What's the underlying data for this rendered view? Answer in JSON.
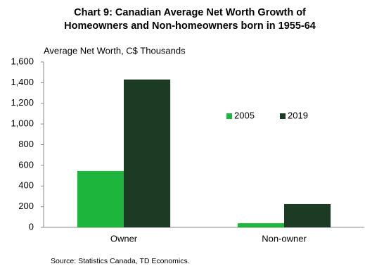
{
  "chart_data": {
    "type": "bar",
    "title": [
      "Chart 9: Canadian Average Net Worth Growth of",
      "Homeowners and Non-homeowners born in 1955-64"
    ],
    "y_label": "Average Net Worth, C$ Thousands",
    "categories": [
      "Owner",
      "Non-owner"
    ],
    "series": [
      {
        "name": "2005",
        "color": "#1db53b",
        "values": [
          545,
          40
        ]
      },
      {
        "name": "2019",
        "color": "#1b3b24",
        "values": [
          1430,
          225
        ]
      }
    ],
    "ylim": [
      0,
      1600
    ],
    "yticks": [
      0,
      200,
      400,
      600,
      800,
      {
        "value": 1000,
        "label": "1,000"
      },
      {
        "value": 1200,
        "label": "1,200"
      },
      {
        "value": 1400,
        "label": "1,400"
      },
      {
        "value": 1600,
        "label": "1,600"
      }
    ],
    "grid": false,
    "source": "Source:  Statistics Canada,  TD  Economics."
  }
}
